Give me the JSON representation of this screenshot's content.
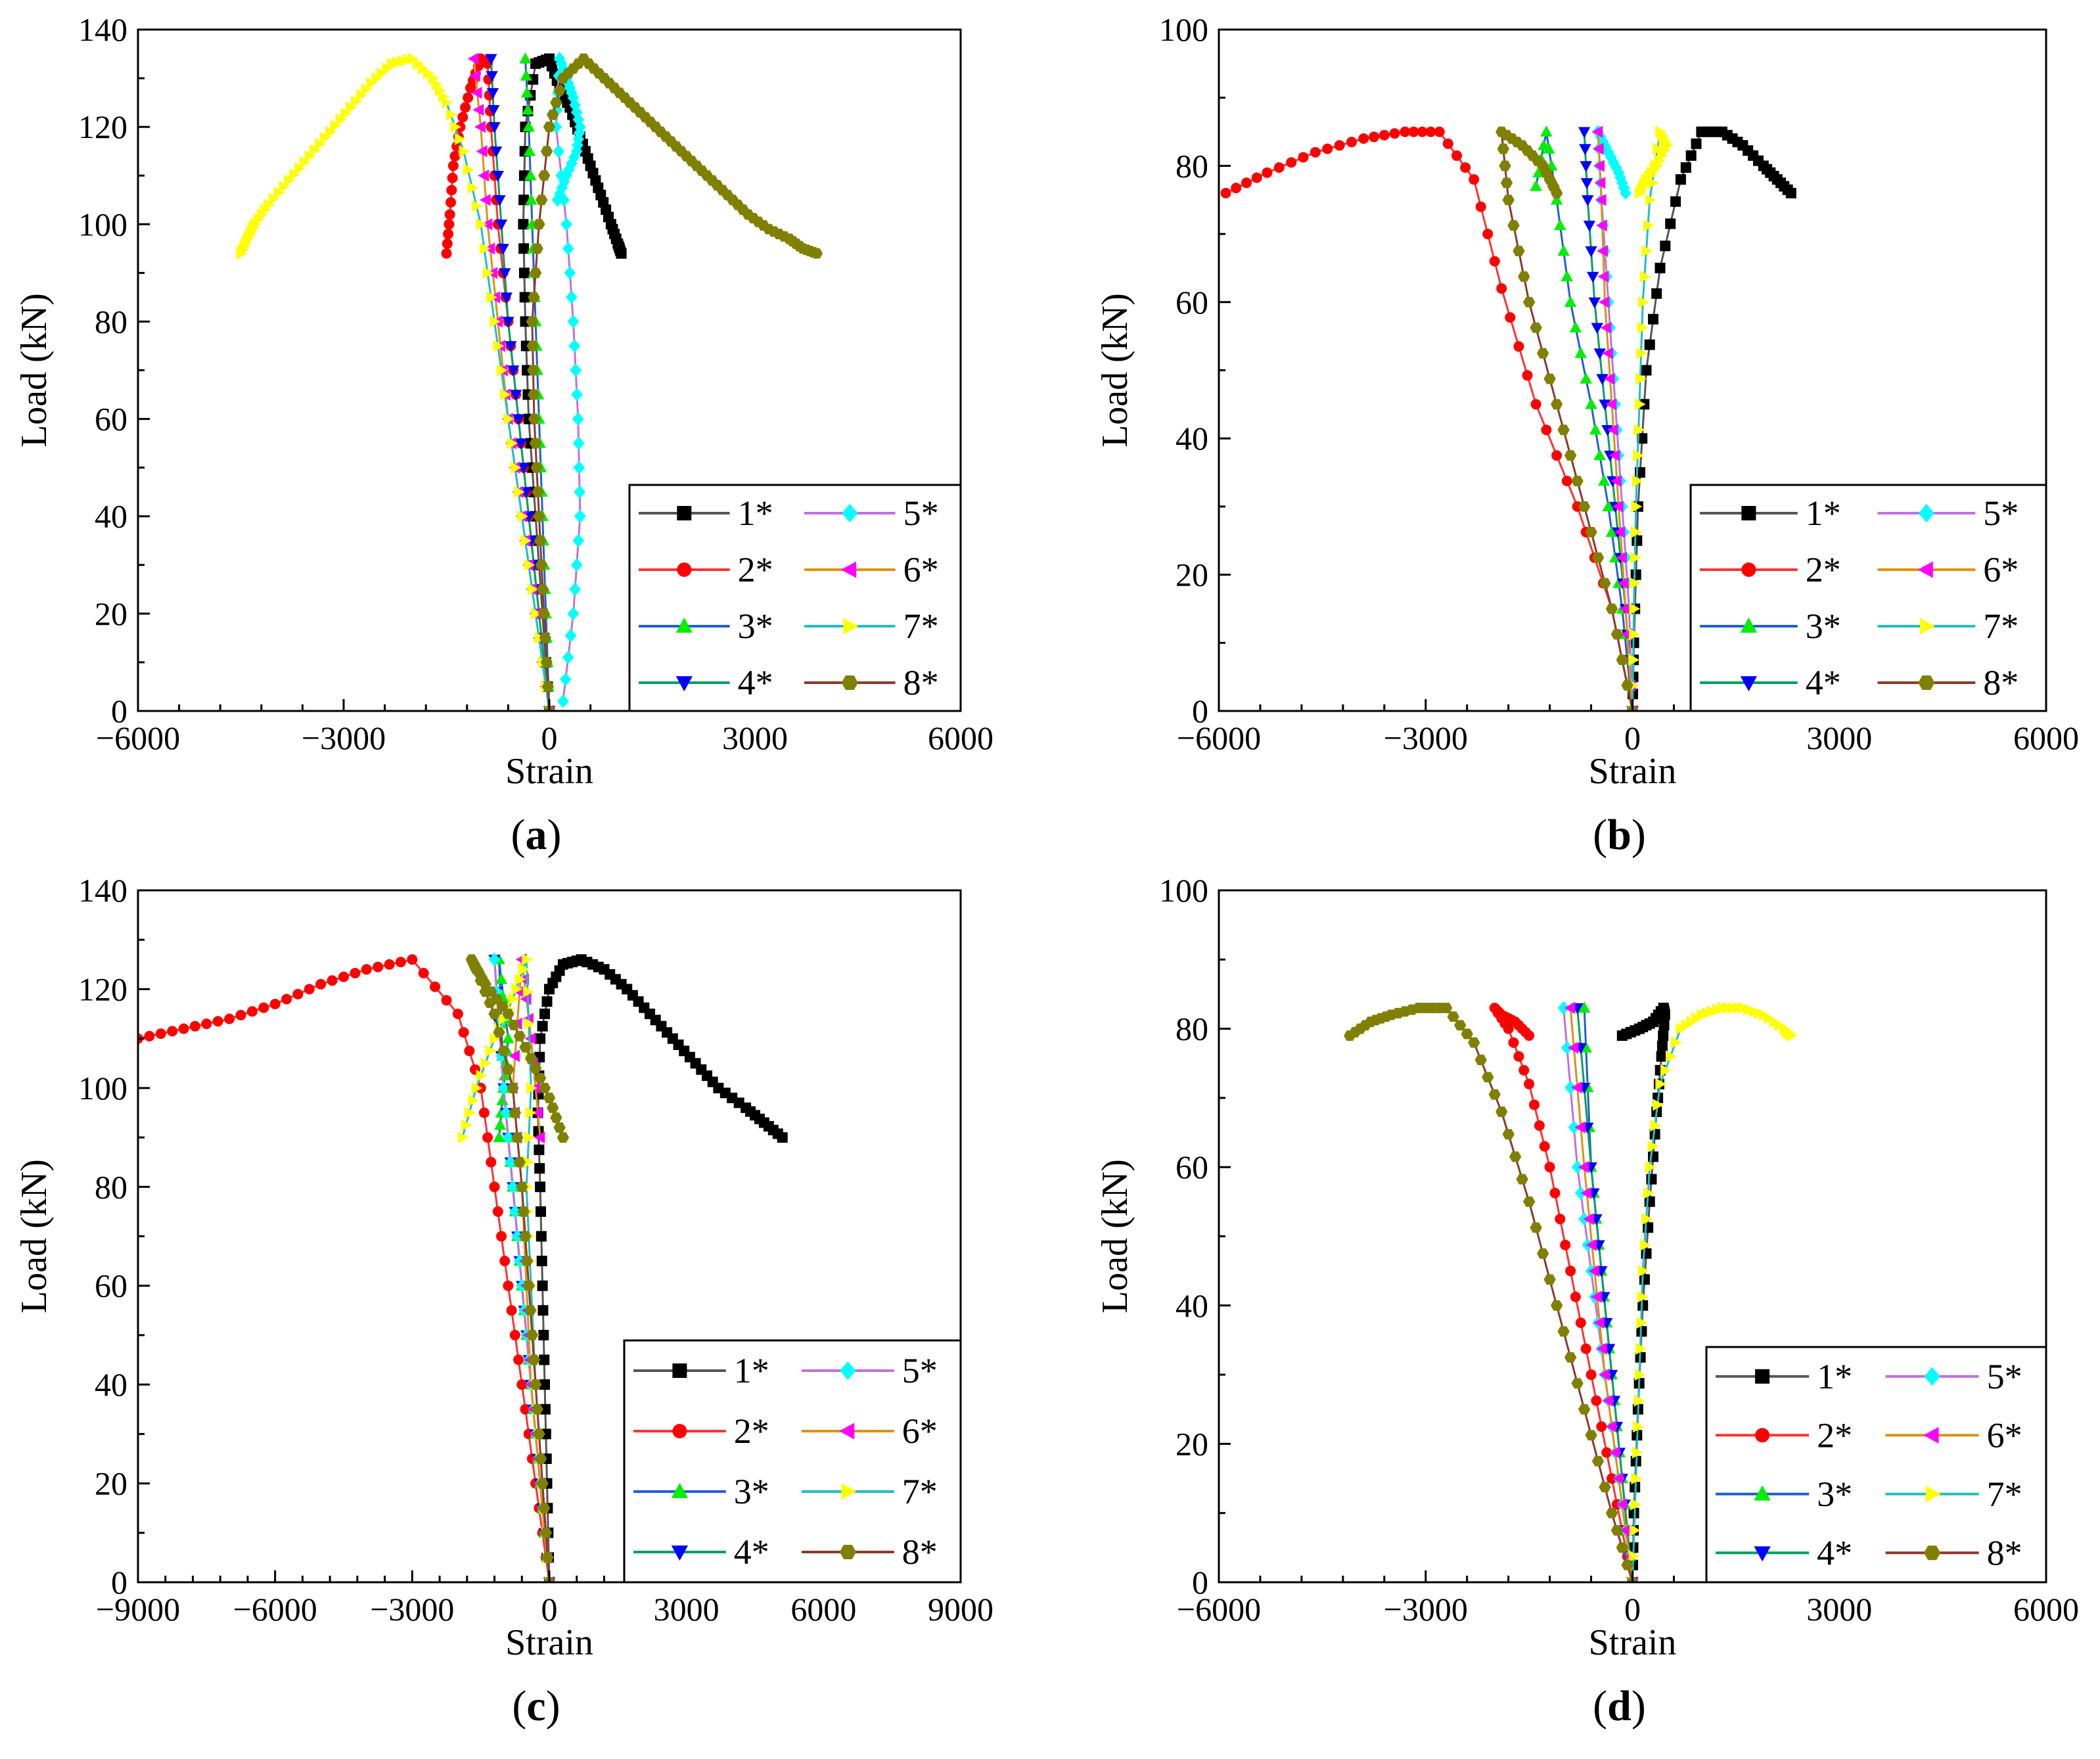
{
  "series_styles": [
    {
      "name": "1*",
      "line": "#555555",
      "marker": "#000000",
      "shape": "square"
    },
    {
      "name": "2*",
      "line": "#ff3333",
      "marker": "#ff0000",
      "shape": "circle"
    },
    {
      "name": "3*",
      "line": "#1f5fd6",
      "marker": "#00ee00",
      "shape": "triangle-up"
    },
    {
      "name": "4*",
      "line": "#00a060",
      "marker": "#0000ff",
      "shape": "triangle-down"
    },
    {
      "name": "5*",
      "line": "#c070e0",
      "marker": "#00ffff",
      "shape": "diamond"
    },
    {
      "name": "6*",
      "line": "#e09010",
      "marker": "#ff00ff",
      "shape": "triangle-left"
    },
    {
      "name": "7*",
      "line": "#20c0c0",
      "marker": "#ffff00",
      "shape": "triangle-right"
    },
    {
      "name": "8*",
      "line": "#8b3a2a",
      "marker": "#808000",
      "shape": "hexagon"
    }
  ],
  "chart_data": [
    {
      "type": "line",
      "panel_label": "a",
      "xlabel": "Strain",
      "ylabel": "Load (kN)",
      "xlim": [
        -6000,
        6000
      ],
      "ylim": [
        0,
        140
      ],
      "xticks": [
        -6000,
        -3000,
        0,
        3000,
        6000
      ],
      "yticks": [
        0,
        20,
        40,
        60,
        80,
        100,
        120,
        140
      ],
      "series": [
        {
          "name": "1*",
          "x": [
            0,
            -100,
            -200,
            -300,
            -350,
            -380,
            -350,
            -200,
            0,
            150,
            300,
            450,
            600,
            750,
            900,
            1000,
            1050
          ],
          "y": [
            0,
            20,
            40,
            60,
            80,
            100,
            120,
            133,
            134,
            128,
            124,
            118,
            112,
            106,
            100,
            96,
            94
          ]
        },
        {
          "name": "2*",
          "x": [
            0,
            -150,
            -300,
            -450,
            -600,
            -750,
            -850,
            -900,
            -1000,
            -1150,
            -1300,
            -1400,
            -1450,
            -1500
          ],
          "y": [
            0,
            20,
            40,
            60,
            80,
            100,
            120,
            133,
            134,
            128,
            120,
            112,
            102,
            94
          ]
        },
        {
          "name": "3*",
          "x": [
            0,
            -50,
            -100,
            -150,
            -200,
            -250,
            -300,
            -350
          ],
          "y": [
            0,
            20,
            40,
            60,
            80,
            100,
            120,
            134
          ]
        },
        {
          "name": "4*",
          "x": [
            0,
            -150,
            -300,
            -450,
            -600,
            -700,
            -800,
            -850
          ],
          "y": [
            0,
            20,
            40,
            60,
            80,
            100,
            120,
            134
          ]
        },
        {
          "name": "5*",
          "x": [
            200,
            350,
            450,
            420,
            350,
            250,
            100,
            150,
            250,
            350,
            450,
            400,
            250,
            120
          ],
          "y": [
            2,
            20,
            40,
            60,
            80,
            100,
            120,
            134,
            130,
            126,
            120,
            115,
            110,
            105
          ]
        },
        {
          "name": "6*",
          "x": [
            0,
            -200,
            -400,
            -600,
            -750,
            -900,
            -1000,
            -1100
          ],
          "y": [
            0,
            20,
            40,
            60,
            80,
            100,
            120,
            134
          ]
        },
        {
          "name": "7*",
          "x": [
            0,
            -200,
            -400,
            -600,
            -800,
            -1000,
            -1250,
            -1500,
            -1700,
            -2000,
            -2300,
            -2600,
            -2900,
            -3200,
            -3500,
            -3800,
            -4100,
            -4300,
            -4400,
            -4500
          ],
          "y": [
            0,
            20,
            40,
            60,
            80,
            100,
            115,
            125,
            130,
            134,
            133,
            129,
            124,
            119,
            114,
            109,
            104,
            100,
            97,
            94
          ]
        },
        {
          "name": "8*",
          "x": [
            0,
            -80,
            -150,
            -220,
            -250,
            -150,
            0,
            200,
            500,
            800,
            1100,
            1400,
            1700,
            2000,
            2300,
            2600,
            2900,
            3200,
            3500,
            3700,
            3900
          ],
          "y": [
            0,
            20,
            40,
            60,
            80,
            100,
            120,
            130,
            134,
            130,
            126,
            122,
            118,
            114,
            110,
            106,
            102,
            99,
            97,
            95,
            94
          ]
        }
      ]
    },
    {
      "type": "line",
      "panel_label": "b",
      "xlabel": "Strain",
      "ylabel": "Load (kN)",
      "xlim": [
        -6000,
        6000
      ],
      "ylim": [
        0,
        100
      ],
      "xticks": [
        -6000,
        -3000,
        0,
        3000,
        6000
      ],
      "yticks": [
        0,
        20,
        40,
        60,
        80,
        100
      ],
      "series": [
        {
          "name": "1*",
          "x": [
            0,
            20,
            80,
            200,
            400,
            700,
            1000,
            1300,
            1600,
            1900,
            2100,
            2300
          ],
          "y": [
            0,
            10,
            30,
            50,
            65,
            78,
            85,
            85,
            83,
            80,
            78,
            76
          ]
        },
        {
          "name": "2*",
          "x": [
            0,
            -300,
            -800,
            -1400,
            -1900,
            -2300,
            -2800,
            -3300,
            -3900,
            -4600,
            -5300,
            -5900
          ],
          "y": [
            0,
            15,
            30,
            45,
            62,
            78,
            85,
            85,
            84,
            82,
            79,
            76
          ]
        },
        {
          "name": "3*",
          "x": [
            0,
            -150,
            -350,
            -600,
            -900,
            -1100,
            -1250,
            -1400
          ],
          "y": [
            0,
            15,
            30,
            45,
            60,
            75,
            85,
            77
          ]
        },
        {
          "name": "4*",
          "x": [
            0,
            -100,
            -250,
            -400,
            -550,
            -650,
            -700
          ],
          "y": [
            0,
            15,
            30,
            45,
            60,
            75,
            85
          ]
        },
        {
          "name": "5*",
          "x": [
            0,
            -50,
            -150,
            -250,
            -350,
            -450,
            -500,
            -350,
            -200,
            -100
          ],
          "y": [
            0,
            15,
            30,
            45,
            60,
            75,
            85,
            82,
            79,
            76
          ]
        },
        {
          "name": "6*",
          "x": [
            0,
            -100,
            -200,
            -300,
            -400,
            -450,
            -500
          ],
          "y": [
            0,
            15,
            30,
            45,
            60,
            75,
            85
          ]
        },
        {
          "name": "7*",
          "x": [
            0,
            20,
            50,
            100,
            150,
            250,
            400,
            500,
            350,
            200,
            100
          ],
          "y": [
            0,
            15,
            30,
            45,
            60,
            75,
            85,
            83,
            80,
            78,
            76
          ]
        },
        {
          "name": "8*",
          "x": [
            0,
            -300,
            -700,
            -1100,
            -1500,
            -1800,
            -1900,
            -1600,
            -1300,
            -1100
          ],
          "y": [
            0,
            15,
            30,
            45,
            60,
            75,
            85,
            83,
            80,
            76
          ]
        }
      ]
    },
    {
      "type": "line",
      "panel_label": "c",
      "xlabel": "Strain",
      "ylabel": "Load (kN)",
      "xlim": [
        -9000,
        9000
      ],
      "ylim": [
        0,
        140
      ],
      "xticks": [
        -9000,
        -6000,
        -3000,
        0,
        3000,
        6000,
        9000
      ],
      "yticks": [
        0,
        20,
        40,
        60,
        80,
        100,
        120,
        140
      ],
      "series": [
        {
          "name": "1*",
          "x": [
            0,
            -50,
            -100,
            -150,
            -200,
            -250,
            -200,
            0,
            300,
            700,
            1200,
            1700,
            2200,
            2700,
            3200,
            3700,
            4300,
            4700,
            5100
          ],
          "y": [
            0,
            20,
            40,
            60,
            80,
            95,
            110,
            120,
            125,
            126,
            124,
            120,
            115,
            110,
            105,
            100,
            96,
            93,
            90
          ]
        },
        {
          "name": "2*",
          "x": [
            0,
            -300,
            -600,
            -900,
            -1200,
            -1500,
            -2000,
            -3000,
            -4000,
            -5000,
            -6000,
            -7000,
            -8000,
            -9000
          ],
          "y": [
            0,
            20,
            40,
            60,
            80,
            100,
            115,
            126,
            124,
            121,
            117,
            114,
            112,
            110
          ]
        },
        {
          "name": "3*",
          "x": [
            0,
            -200,
            -400,
            -600,
            -800,
            -1000,
            -1100,
            -900,
            -1000,
            -1100
          ],
          "y": [
            0,
            20,
            40,
            60,
            80,
            100,
            126,
            110,
            100,
            90
          ]
        },
        {
          "name": "4*",
          "x": [
            0,
            -200,
            -400,
            -600,
            -800,
            -1000,
            -1200
          ],
          "y": [
            0,
            20,
            40,
            60,
            80,
            100,
            126
          ]
        },
        {
          "name": "5*",
          "x": [
            0,
            -200,
            -400,
            -600,
            -800,
            -1000,
            -1200
          ],
          "y": [
            0,
            20,
            40,
            60,
            80,
            100,
            126
          ]
        },
        {
          "name": "6*",
          "x": [
            0,
            -200,
            -400,
            -500,
            -600,
            -800,
            -600,
            -400,
            -200
          ],
          "y": [
            0,
            20,
            40,
            60,
            80,
            100,
            126,
            110,
            90
          ]
        },
        {
          "name": "7*",
          "x": [
            0,
            -150,
            -300,
            -400,
            -500,
            -400,
            -500,
            -800,
            -1200,
            -1600,
            -1900
          ],
          "y": [
            0,
            20,
            40,
            60,
            80,
            100,
            126,
            118,
            110,
            100,
            90
          ]
        },
        {
          "name": "8*",
          "x": [
            0,
            -150,
            -300,
            -450,
            -600,
            -800,
            -1200,
            -1600,
            -1700,
            -1400,
            -900,
            -400,
            0,
            300
          ],
          "y": [
            0,
            20,
            40,
            60,
            80,
            100,
            115,
            124,
            126,
            121,
            115,
            106,
            98,
            90
          ]
        }
      ]
    },
    {
      "type": "line",
      "panel_label": "d",
      "xlabel": "Strain",
      "ylabel": "Load (kN)",
      "xlim": [
        -6000,
        6000
      ],
      "ylim": [
        0,
        100
      ],
      "xticks": [
        -6000,
        -3000,
        0,
        3000,
        6000
      ],
      "yticks": [
        0,
        20,
        40,
        60,
        80,
        100
      ],
      "series": [
        {
          "name": "1*",
          "x": [
            0,
            20,
            80,
            150,
            250,
            350,
            420,
            470,
            450,
            300,
            100,
            -150
          ],
          "y": [
            0,
            10,
            25,
            40,
            55,
            68,
            76,
            82,
            83,
            81,
            80,
            79
          ]
        },
        {
          "name": "2*",
          "x": [
            0,
            -300,
            -600,
            -900,
            -1200,
            -1500,
            -1800,
            -2000,
            -1900,
            -1700,
            -1500
          ],
          "y": [
            0,
            15,
            30,
            45,
            60,
            72,
            80,
            83,
            82,
            81,
            79
          ]
        },
        {
          "name": "3*",
          "x": [
            0,
            -150,
            -300,
            -450,
            -600,
            -700
          ],
          "y": [
            0,
            15,
            30,
            45,
            60,
            83
          ]
        },
        {
          "name": "4*",
          "x": [
            0,
            -150,
            -300,
            -450,
            -600,
            -800
          ],
          "y": [
            0,
            15,
            30,
            45,
            60,
            83
          ]
        },
        {
          "name": "5*",
          "x": [
            0,
            -200,
            -400,
            -600,
            -800,
            -1000
          ],
          "y": [
            0,
            15,
            30,
            45,
            60,
            83
          ]
        },
        {
          "name": "6*",
          "x": [
            0,
            -200,
            -400,
            -550,
            -700,
            -900
          ],
          "y": [
            0,
            15,
            30,
            45,
            60,
            83
          ]
        },
        {
          "name": "7*",
          "x": [
            0,
            50,
            100,
            150,
            250,
            400,
            700,
            1000,
            1300,
            1600,
            1900,
            2200,
            2300
          ],
          "y": [
            0,
            15,
            30,
            45,
            60,
            72,
            80,
            82,
            83,
            83,
            82,
            80,
            79
          ]
        },
        {
          "name": "8*",
          "x": [
            0,
            -300,
            -700,
            -1100,
            -1500,
            -1900,
            -2300,
            -2700,
            -3100,
            -3500,
            -3800,
            -4100
          ],
          "y": [
            0,
            10,
            25,
            40,
            55,
            68,
            78,
            83,
            83,
            82,
            81,
            79
          ]
        }
      ]
    }
  ]
}
